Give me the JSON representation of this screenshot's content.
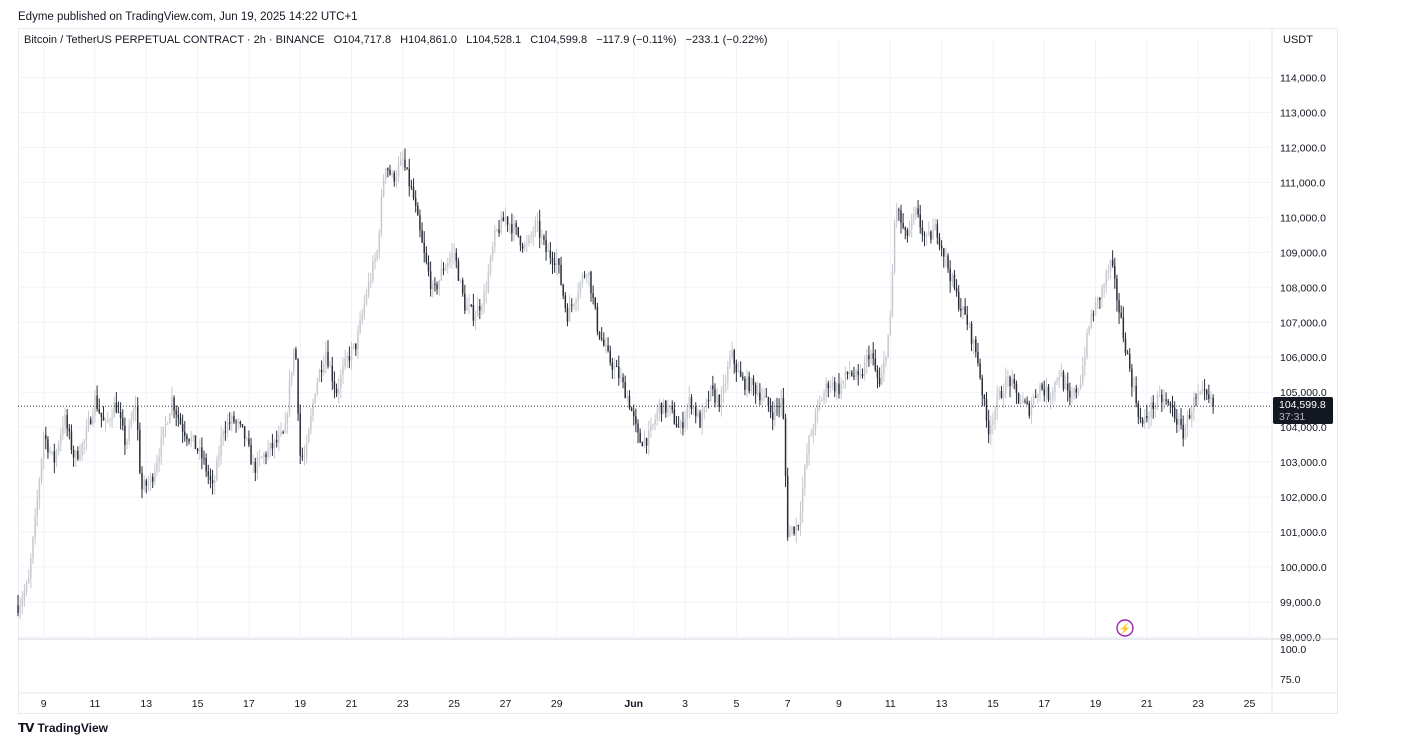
{
  "header": {
    "published": "Edyme published on TradingView.com, Jun 19, 2025 14:22 UTC+1"
  },
  "legend": {
    "symbol": "Bitcoin / TetherUS PERPETUAL CONTRACT · 2h · BINANCE",
    "open": "O104,717.8",
    "high": "H104,861.0",
    "low": "L104,528.1",
    "close": "C104,599.8",
    "change": "−117.9 (−0.11%)",
    "change2": "−233.1 (−0.22%)"
  },
  "currency": "USDT",
  "last_price": {
    "value": "104,599.8",
    "countdown": "37:31"
  },
  "footer": {
    "brand": "TradingView",
    "logo": "tradingview-logo-icon"
  },
  "chart_data": {
    "type": "candlestick",
    "timeframe": "2h",
    "ylim": [
      98000,
      114500
    ],
    "yticks": [
      "114,000.0",
      "113,000.0",
      "112,000.0",
      "111,000.0",
      "110,000.0",
      "109,000.0",
      "108,000.0",
      "107,000.0",
      "106,000.0",
      "105,000.0",
      "104,000.0",
      "103,000.0",
      "102,000.0",
      "101,000.0",
      "100,000.0",
      "99,000.0",
      "98,000.0"
    ],
    "ytick_values": [
      114000,
      113000,
      112000,
      111000,
      110000,
      109000,
      108000,
      107000,
      106000,
      105000,
      104000,
      103000,
      102000,
      101000,
      100000,
      99000,
      98000
    ],
    "volume_ticks": [
      "100.0",
      "75.0"
    ],
    "xticks": [
      "9",
      "11",
      "13",
      "15",
      "17",
      "19",
      "21",
      "23",
      "25",
      "27",
      "29",
      "Jun",
      "3",
      "5",
      "7",
      "9",
      "11",
      "13",
      "15",
      "17",
      "19",
      "21",
      "23",
      "25"
    ],
    "xtick_days": [
      1,
      3,
      5,
      7,
      9,
      11,
      13,
      15,
      17,
      19,
      21,
      24,
      26,
      28,
      30,
      32,
      34,
      36,
      38,
      40,
      42,
      44,
      46,
      48
    ],
    "x_unit": "days since May 8 2025",
    "price_path": [
      [
        0.0,
        98900
      ],
      [
        0.4,
        99500
      ],
      [
        0.7,
        101500
      ],
      [
        1.0,
        103800
      ],
      [
        1.4,
        103000
      ],
      [
        1.8,
        104300
      ],
      [
        2.2,
        103100
      ],
      [
        2.6,
        103600
      ],
      [
        3.0,
        104800
      ],
      [
        3.4,
        104000
      ],
      [
        3.8,
        104700
      ],
      [
        4.2,
        103500
      ],
      [
        4.6,
        104700
      ],
      [
        4.8,
        102200
      ],
      [
        5.2,
        102500
      ],
      [
        5.6,
        103600
      ],
      [
        6.0,
        104800
      ],
      [
        6.4,
        104000
      ],
      [
        6.8,
        103600
      ],
      [
        7.2,
        103100
      ],
      [
        7.6,
        102200
      ],
      [
        8.0,
        104000
      ],
      [
        8.4,
        104200
      ],
      [
        8.8,
        103800
      ],
      [
        9.2,
        102800
      ],
      [
        9.6,
        103200
      ],
      [
        10.0,
        103500
      ],
      [
        10.4,
        103800
      ],
      [
        10.6,
        105300
      ],
      [
        10.8,
        106500
      ],
      [
        11.0,
        103200
      ],
      [
        11.2,
        103100
      ],
      [
        11.6,
        105200
      ],
      [
        12.0,
        106200
      ],
      [
        12.4,
        105000
      ],
      [
        12.8,
        105900
      ],
      [
        13.2,
        106400
      ],
      [
        13.6,
        107900
      ],
      [
        14.0,
        109000
      ],
      [
        14.3,
        111600
      ],
      [
        14.6,
        111100
      ],
      [
        15.0,
        111600
      ],
      [
        15.4,
        110600
      ],
      [
        15.8,
        109000
      ],
      [
        16.2,
        107800
      ],
      [
        16.6,
        108600
      ],
      [
        17.0,
        109000
      ],
      [
        17.4,
        107500
      ],
      [
        17.8,
        107200
      ],
      [
        18.2,
        107800
      ],
      [
        18.6,
        109500
      ],
      [
        19.0,
        110000
      ],
      [
        19.4,
        109600
      ],
      [
        19.8,
        109100
      ],
      [
        20.2,
        109800
      ],
      [
        20.6,
        109000
      ],
      [
        21.0,
        108800
      ],
      [
        21.4,
        107200
      ],
      [
        21.8,
        107900
      ],
      [
        22.2,
        108600
      ],
      [
        22.6,
        106800
      ],
      [
        23.0,
        106000
      ],
      [
        23.4,
        105500
      ],
      [
        23.8,
        104800
      ],
      [
        24.2,
        103600
      ],
      [
        24.6,
        103700
      ],
      [
        25.0,
        104600
      ],
      [
        25.4,
        104500
      ],
      [
        25.8,
        103900
      ],
      [
        26.2,
        104800
      ],
      [
        26.6,
        104100
      ],
      [
        27.0,
        105000
      ],
      [
        27.4,
        104700
      ],
      [
        27.8,
        106100
      ],
      [
        28.2,
        105300
      ],
      [
        28.6,
        105200
      ],
      [
        29.0,
        104900
      ],
      [
        29.4,
        104400
      ],
      [
        29.8,
        104800
      ],
      [
        30.0,
        101000
      ],
      [
        30.4,
        101200
      ],
      [
        30.8,
        103500
      ],
      [
        31.2,
        104600
      ],
      [
        31.6,
        105300
      ],
      [
        32.0,
        105100
      ],
      [
        32.4,
        105600
      ],
      [
        32.8,
        105300
      ],
      [
        33.2,
        106200
      ],
      [
        33.6,
        105100
      ],
      [
        34.0,
        107000
      ],
      [
        34.2,
        110400
      ],
      [
        34.6,
        109400
      ],
      [
        35.0,
        110100
      ],
      [
        35.4,
        109300
      ],
      [
        35.8,
        109700
      ],
      [
        36.2,
        108700
      ],
      [
        36.6,
        107700
      ],
      [
        37.0,
        107000
      ],
      [
        37.4,
        106000
      ],
      [
        37.8,
        103900
      ],
      [
        38.2,
        104800
      ],
      [
        38.6,
        105400
      ],
      [
        39.0,
        104800
      ],
      [
        39.4,
        104500
      ],
      [
        39.8,
        105200
      ],
      [
        40.2,
        104900
      ],
      [
        40.6,
        105600
      ],
      [
        41.0,
        104700
      ],
      [
        41.4,
        105300
      ],
      [
        41.8,
        107100
      ],
      [
        42.2,
        107800
      ],
      [
        42.6,
        108700
      ],
      [
        43.0,
        107000
      ],
      [
        43.4,
        105400
      ],
      [
        43.8,
        104000
      ],
      [
        44.2,
        104600
      ],
      [
        44.6,
        104800
      ],
      [
        45.0,
        104500
      ],
      [
        45.4,
        103800
      ],
      [
        45.8,
        104700
      ],
      [
        46.2,
        104900
      ],
      [
        46.6,
        104600
      ]
    ],
    "last_close": 104599.8
  },
  "colors": {
    "candle_up": "#c7c9cf",
    "candle_down": "#2a2e39",
    "grid": "#f0f3fa",
    "price_line": "#131722",
    "alert": "#9c27b0"
  }
}
